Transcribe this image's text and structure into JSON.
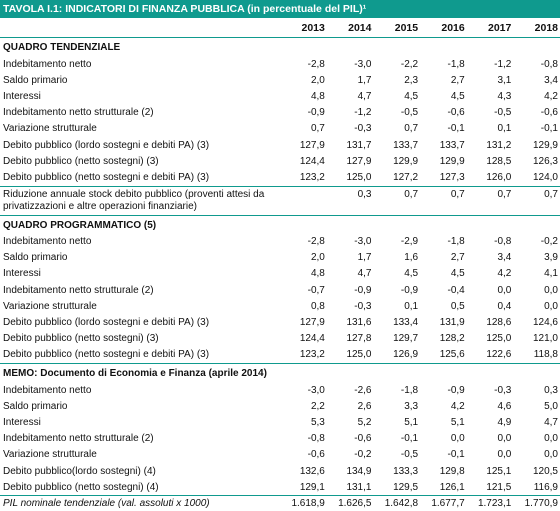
{
  "title": "TAVOLA I.1: INDICATORI DI FINANZA PUBBLICA (in percentuale del PIL)¹",
  "years": [
    "2013",
    "2014",
    "2015",
    "2016",
    "2017",
    "2018"
  ],
  "sections": [
    {
      "heading": "QUADRO TENDENZIALE",
      "rows": [
        {
          "label": "Indebitamento netto",
          "values": [
            "-2,8",
            "-3,0",
            "-2,2",
            "-1,8",
            "-1,2",
            "-0,8"
          ]
        },
        {
          "label": "Saldo primario",
          "values": [
            "2,0",
            "1,7",
            "2,3",
            "2,7",
            "3,1",
            "3,4"
          ]
        },
        {
          "label": "Interessi",
          "values": [
            "4,8",
            "4,7",
            "4,5",
            "4,5",
            "4,3",
            "4,2"
          ]
        },
        {
          "label": "Indebitamento netto strutturale (2)",
          "values": [
            "-0,9",
            "-1,2",
            "-0,5",
            "-0,6",
            "-0,5",
            "-0,6"
          ]
        },
        {
          "label": "Variazione strutturale",
          "values": [
            "0,7",
            "-0,3",
            "0,7",
            "-0,1",
            "0,1",
            "-0,1"
          ]
        },
        {
          "label": "Debito pubblico (lordo sostegni e debiti PA) (3)",
          "values": [
            "127,9",
            "131,7",
            "133,7",
            "133,7",
            "131,2",
            "129,9"
          ]
        },
        {
          "label": "Debito pubblico (netto sostegni) (3)",
          "values": [
            "124,4",
            "127,9",
            "129,9",
            "129,9",
            "128,5",
            "126,3"
          ]
        },
        {
          "label": "Debito pubblico (netto sostegni e debiti PA) (3)",
          "values": [
            "123,2",
            "125,0",
            "127,2",
            "127,3",
            "126,0",
            "124,0"
          ]
        },
        {
          "label": "Riduzione annuale stock debito pubblico (proventi attesi da privatizzazioni e altre operazioni finanziarie)",
          "values": [
            "",
            "0,3",
            "0,7",
            "0,7",
            "0,7",
            "0,7"
          ],
          "two_line": true
        }
      ]
    },
    {
      "heading": "QUADRO PROGRAMMATICO (5)",
      "rows": [
        {
          "label": "Indebitamento netto",
          "values": [
            "-2,8",
            "-3,0",
            "-2,9",
            "-1,8",
            "-0,8",
            "-0,2"
          ]
        },
        {
          "label": "Saldo primario",
          "values": [
            "2,0",
            "1,7",
            "1,6",
            "2,7",
            "3,4",
            "3,9"
          ]
        },
        {
          "label": "Interessi",
          "values": [
            "4,8",
            "4,7",
            "4,5",
            "4,5",
            "4,2",
            "4,1"
          ]
        },
        {
          "label": "Indebitamento netto strutturale (2)",
          "values": [
            "-0,7",
            "-0,9",
            "-0,9",
            "-0,4",
            "0,0",
            "0,0"
          ]
        },
        {
          "label": "Variazione strutturale",
          "values": [
            "0,8",
            "-0,3",
            "0,1",
            "0,5",
            "0,4",
            "0,0"
          ]
        },
        {
          "label": "Debito pubblico (lordo sostegni e debiti PA) (3)",
          "values": [
            "127,9",
            "131,6",
            "133,4",
            "131,9",
            "128,6",
            "124,6"
          ]
        },
        {
          "label": "Debito pubblico (netto sostegni) (3)",
          "values": [
            "124,4",
            "127,8",
            "129,7",
            "128,2",
            "125,0",
            "121,0"
          ]
        },
        {
          "label": "Debito pubblico (netto sostegni e debiti PA) (3)",
          "values": [
            "123,2",
            "125,0",
            "126,9",
            "125,6",
            "122,6",
            "118,8"
          ]
        }
      ]
    },
    {
      "heading": "MEMO: Documento di Economia e Finanza (aprile 2014)",
      "rows": [
        {
          "label": "Indebitamento netto",
          "values": [
            "-3,0",
            "-2,6",
            "-1,8",
            "-0,9",
            "-0,3",
            "0,3"
          ]
        },
        {
          "label": "Saldo primario",
          "values": [
            "2,2",
            "2,6",
            "3,3",
            "4,2",
            "4,6",
            "5,0"
          ]
        },
        {
          "label": "Interessi",
          "values": [
            "5,3",
            "5,2",
            "5,1",
            "5,1",
            "4,9",
            "4,7"
          ]
        },
        {
          "label": "Indebitamento netto strutturale (2)",
          "values": [
            "-0,8",
            "-0,6",
            "-0,1",
            "0,0",
            "0,0",
            "0,0"
          ]
        },
        {
          "label": "Variazione strutturale",
          "values": [
            "-0,6",
            "-0,2",
            "-0,5",
            "-0,1",
            "0,0",
            "0,0"
          ]
        },
        {
          "label": "Debito pubblico(lordo sostegni) (4)",
          "values": [
            "132,6",
            "134,9",
            "133,3",
            "129,8",
            "125,1",
            "120,5"
          ]
        },
        {
          "label": "Debito pubblico (netto sostegni) (4)",
          "values": [
            "129,1",
            "131,1",
            "129,5",
            "126,1",
            "121,5",
            "116,9"
          ]
        }
      ]
    }
  ],
  "footer": {
    "label": "PIL nominale tendenziale (val. assoluti x 1000)",
    "values": [
      "1.618,9",
      "1.626,5",
      "1.642,8",
      "1.677,7",
      "1.723,1",
      "1.770,9"
    ]
  }
}
